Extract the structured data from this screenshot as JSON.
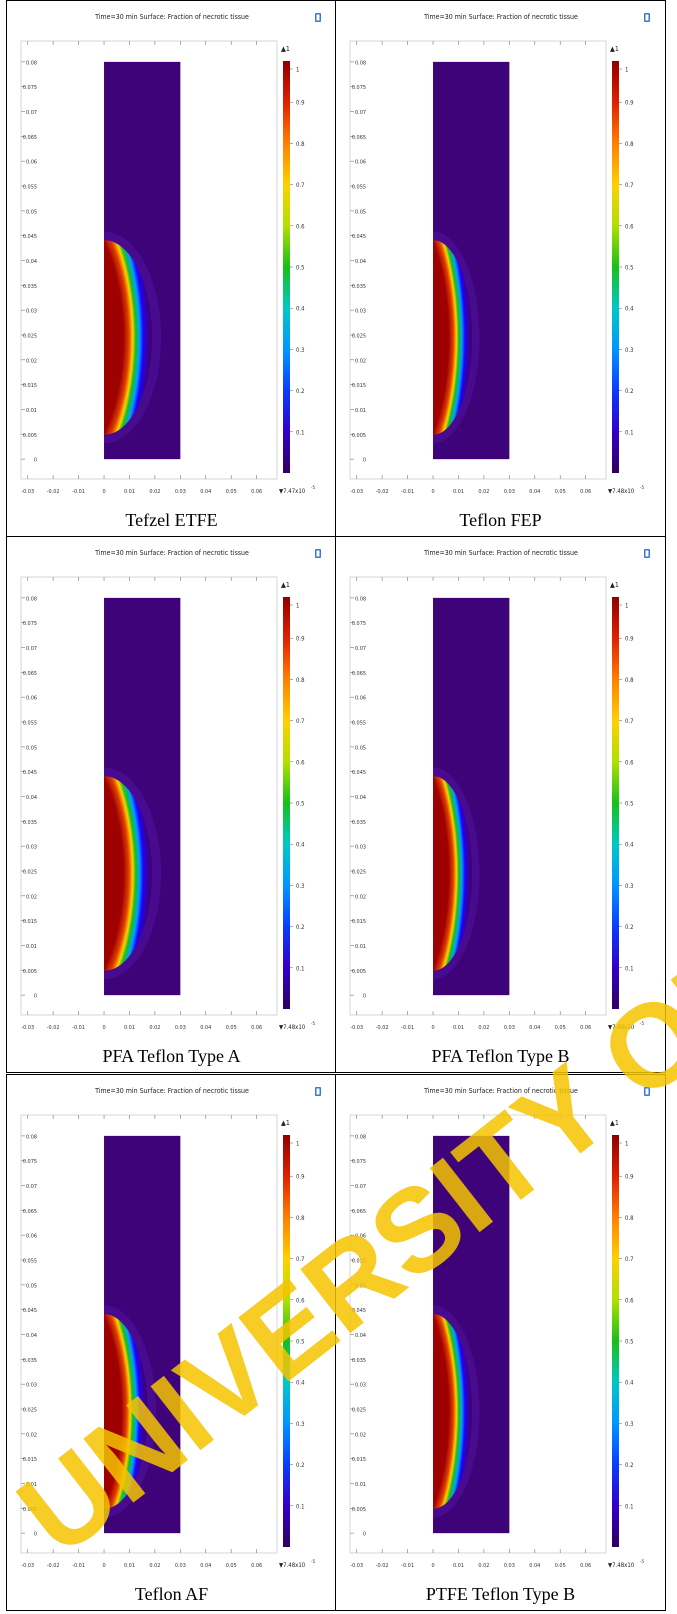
{
  "watermark": {
    "text": "UNIVERSITY OF IBADAN",
    "color": "#f5c400"
  },
  "chart_data": [
    {
      "type": "heatmap",
      "title": "Time=30 min  Surface: Fraction of necrotic tissue",
      "caption": "Tefzel ETFE",
      "x_ticks": [
        "-0.03",
        "-0.02",
        "-0.01",
        "0",
        "0.01",
        "0.02",
        "0.03",
        "0.04",
        "0.05",
        "0.06"
      ],
      "y_ticks": [
        "0",
        "0.005",
        "0.01",
        "0.015",
        "0.02",
        "0.025",
        "0.03",
        "0.035",
        "0.04",
        "0.045",
        "0.05",
        "0.055",
        "0.06",
        "0.065",
        "0.07",
        "0.075",
        "0.08"
      ],
      "xlim": [
        -0.035,
        0.068
      ],
      "ylim": [
        -0.004,
        0.083
      ],
      "domain": {
        "x": [
          0,
          0.03
        ],
        "y": [
          0,
          0.08
        ]
      },
      "necrotic_zone": {
        "center_y": 0.0245,
        "half_height": 0.0175,
        "max_x": 0.0145
      },
      "colorbar": {
        "max_label": "1",
        "min_label": "7.47x10",
        "min_exp": "-5",
        "ticks": [
          "1",
          "0.9",
          "0.8",
          "0.7",
          "0.6",
          "0.5",
          "0.4",
          "0.3",
          "0.2",
          "0.1"
        ]
      }
    },
    {
      "type": "heatmap",
      "title": "Time=30 min  Surface: Fraction of necrotic tissue",
      "caption": "Teflon FEP",
      "x_ticks": [
        "-0.03",
        "-0.02",
        "-0.01",
        "0",
        "0.01",
        "0.02",
        "0.03",
        "0.04",
        "0.05",
        "0.06"
      ],
      "y_ticks": [
        "0",
        "0.005",
        "0.01",
        "0.015",
        "0.02",
        "0.025",
        "0.03",
        "0.035",
        "0.04",
        "0.045",
        "0.05",
        "0.055",
        "0.06",
        "0.065",
        "0.07",
        "0.075",
        "0.08"
      ],
      "xlim": [
        -0.035,
        0.068
      ],
      "ylim": [
        -0.004,
        0.083
      ],
      "domain": {
        "x": [
          0,
          0.03
        ],
        "y": [
          0,
          0.08
        ]
      },
      "necrotic_zone": {
        "center_y": 0.0245,
        "half_height": 0.0175,
        "max_x": 0.0118
      },
      "colorbar": {
        "max_label": "1",
        "min_label": "7.48x10",
        "min_exp": "-5",
        "ticks": [
          "1",
          "0.9",
          "0.8",
          "0.7",
          "0.6",
          "0.5",
          "0.4",
          "0.3",
          "0.2",
          "0.1"
        ]
      }
    },
    {
      "type": "heatmap",
      "title": "Time=30 min  Surface: Fraction of necrotic tissue",
      "caption": "PFA Teflon Type A",
      "x_ticks": [
        "-0.03",
        "-0.02",
        "-0.01",
        "0",
        "0.01",
        "0.02",
        "0.03",
        "0.04",
        "0.05",
        "0.06"
      ],
      "y_ticks": [
        "0",
        "0.005",
        "0.01",
        "0.015",
        "0.02",
        "0.025",
        "0.03",
        "0.035",
        "0.04",
        "0.045",
        "0.05",
        "0.055",
        "0.06",
        "0.065",
        "0.07",
        "0.075",
        "0.08"
      ],
      "xlim": [
        -0.035,
        0.068
      ],
      "ylim": [
        -0.004,
        0.083
      ],
      "domain": {
        "x": [
          0,
          0.03
        ],
        "y": [
          0,
          0.08
        ]
      },
      "necrotic_zone": {
        "center_y": 0.0245,
        "half_height": 0.0175,
        "max_x": 0.0145
      },
      "colorbar": {
        "max_label": "1",
        "min_label": "7.48x10",
        "min_exp": "-5",
        "ticks": [
          "1",
          "0.9",
          "0.8",
          "0.7",
          "0.6",
          "0.5",
          "0.4",
          "0.3",
          "0.2",
          "0.1"
        ]
      }
    },
    {
      "type": "heatmap",
      "title": "Time=30 min  Surface: Fraction of necrotic tissue",
      "caption": "PFA Teflon Type B",
      "x_ticks": [
        "-0.03",
        "-0.02",
        "-0.01",
        "0",
        "0.01",
        "0.02",
        "0.03",
        "0.04",
        "0.05",
        "0.06"
      ],
      "y_ticks": [
        "0",
        "0.005",
        "0.01",
        "0.015",
        "0.02",
        "0.025",
        "0.03",
        "0.035",
        "0.04",
        "0.045",
        "0.05",
        "0.055",
        "0.06",
        "0.065",
        "0.07",
        "0.075",
        "0.08"
      ],
      "xlim": [
        -0.035,
        0.068
      ],
      "ylim": [
        -0.004,
        0.083
      ],
      "domain": {
        "x": [
          0,
          0.03
        ],
        "y": [
          0,
          0.08
        ]
      },
      "necrotic_zone": {
        "center_y": 0.0245,
        "half_height": 0.0175,
        "max_x": 0.0118
      },
      "colorbar": {
        "max_label": "1",
        "min_label": "7.48x10",
        "min_exp": "-5",
        "ticks": [
          "1",
          "0.9",
          "0.8",
          "0.7",
          "0.6",
          "0.5",
          "0.4",
          "0.3",
          "0.2",
          "0.1"
        ]
      }
    },
    {
      "type": "heatmap",
      "title": "Time=30 min  Surface: Fraction of necrotic tissue",
      "caption": "Teflon AF",
      "x_ticks": [
        "-0.03",
        "-0.02",
        "-0.01",
        "0",
        "0.01",
        "0.02",
        "0.03",
        "0.04",
        "0.05",
        "0.06"
      ],
      "y_ticks": [
        "0",
        "0.005",
        "0.01",
        "0.015",
        "0.02",
        "0.025",
        "0.03",
        "0.035",
        "0.04",
        "0.045",
        "0.05",
        "0.055",
        "0.06",
        "0.065",
        "0.07",
        "0.075",
        "0.08"
      ],
      "xlim": [
        -0.035,
        0.068
      ],
      "ylim": [
        -0.004,
        0.083
      ],
      "domain": {
        "x": [
          0,
          0.03
        ],
        "y": [
          0,
          0.08
        ]
      },
      "necrotic_zone": {
        "center_y": 0.0245,
        "half_height": 0.0175,
        "max_x": 0.0132
      },
      "colorbar": {
        "max_label": "1",
        "min_label": "7.48x10",
        "min_exp": "-5",
        "ticks": [
          "1",
          "0.9",
          "0.8",
          "0.7",
          "0.6",
          "0.5",
          "0.4",
          "0.3",
          "0.2",
          "0.1"
        ]
      }
    },
    {
      "type": "heatmap",
      "title": "Time=30 min  Surface: Fraction of necrotic tissue",
      "caption": "PTFE Teflon Type B",
      "x_ticks": [
        "-0.03",
        "-0.02",
        "-0.01",
        "0",
        "0.01",
        "0.02",
        "0.03",
        "0.04",
        "0.05",
        "0.06"
      ],
      "y_ticks": [
        "0",
        "0.005",
        "0.01",
        "0.015",
        "0.02",
        "0.025",
        "0.03",
        "0.035",
        "0.04",
        "0.045",
        "0.05",
        "0.055",
        "0.06",
        "0.065",
        "0.07",
        "0.075",
        "0.08"
      ],
      "xlim": [
        -0.035,
        0.068
      ],
      "ylim": [
        -0.004,
        0.083
      ],
      "domain": {
        "x": [
          0,
          0.03
        ],
        "y": [
          0,
          0.08
        ]
      },
      "necrotic_zone": {
        "center_y": 0.0245,
        "half_height": 0.0175,
        "max_x": 0.0118
      },
      "colorbar": {
        "max_label": "1",
        "min_label": "7.48x10",
        "min_exp": "-5",
        "ticks": [
          "1",
          "0.9",
          "0.8",
          "0.7",
          "0.6",
          "0.5",
          "0.4",
          "0.3",
          "0.2",
          "0.1"
        ]
      }
    }
  ]
}
